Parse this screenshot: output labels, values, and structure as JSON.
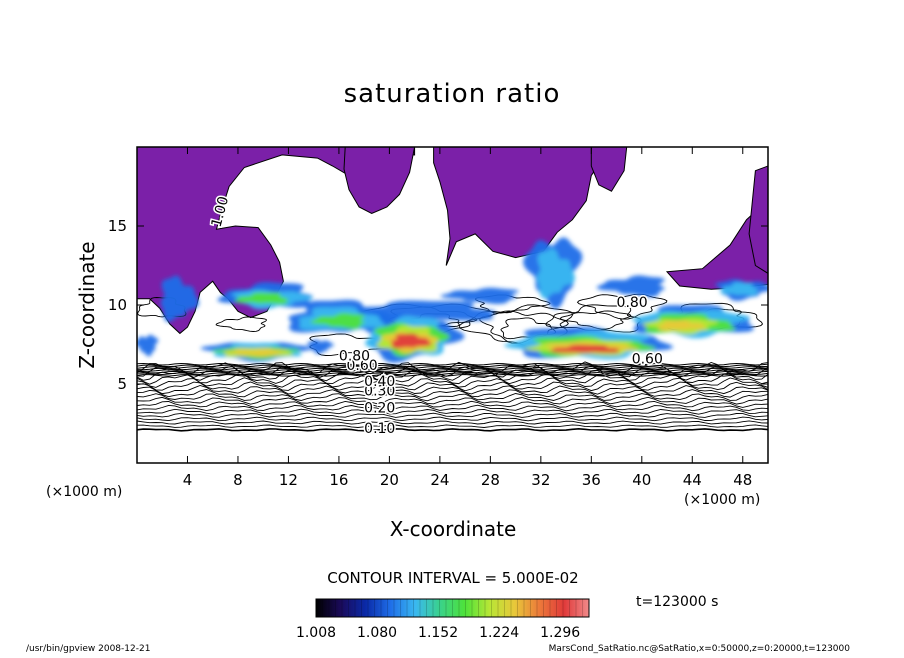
{
  "chart_data": {
    "type": "heatmap",
    "title": "saturation ratio",
    "xlabel": "X-coordinate",
    "ylabel": "Z-coordinate",
    "x_unit_label": "(×1000 m)",
    "z_unit_label": "(×1000 m)",
    "xlim": [
      0,
      50
    ],
    "ylim": [
      0,
      20
    ],
    "x_ticks": [
      4,
      8,
      12,
      16,
      20,
      24,
      28,
      32,
      36,
      40,
      44,
      48
    ],
    "y_ticks": [
      5,
      10,
      15
    ],
    "x_tick_labels": [
      "4",
      "8",
      "12",
      "16",
      "20",
      "24",
      "28",
      "32",
      "36",
      "40",
      "44",
      "48"
    ],
    "y_tick_labels": [
      "5",
      "10",
      "15"
    ],
    "contour_interval_text": "CONTOUR INTERVAL = 5.000E-02",
    "contour_labels": [
      "0.10",
      "0.20",
      "0.30",
      "0.40",
      "0.60",
      "0.80",
      "1.00",
      "0.80",
      "0.60"
    ],
    "contour_label_values": [
      0.1,
      0.2,
      0.3,
      0.4,
      0.6,
      0.8,
      1.0,
      0.8,
      0.6
    ],
    "contour_levels_lower": [
      0.1,
      0.15,
      0.2,
      0.25,
      0.3,
      0.35,
      0.4,
      0.45,
      0.5,
      0.55,
      0.6,
      0.65,
      0.7,
      0.75,
      0.8,
      0.85,
      0.9,
      0.95
    ],
    "colorbar": {
      "min": 1.008,
      "max": 1.33,
      "tick_labels": [
        "1.008",
        "1.080",
        "1.152",
        "1.224",
        "1.296"
      ],
      "tick_values": [
        1.008,
        1.08,
        1.152,
        1.224,
        1.296
      ],
      "colors": [
        "#000000",
        "#1a0a5a",
        "#0a2aa8",
        "#1f6ee8",
        "#3ab8f0",
        "#3ad28a",
        "#4ee23a",
        "#b8e636",
        "#e8c83a",
        "#ec7a3a",
        "#e03a3a",
        "#f08a8a"
      ]
    },
    "ice_region_color": "#7b20a8",
    "time_label": "t=123000 s"
  },
  "footer": {
    "left": "/usr/bin/gpview   2008-12-21",
    "right": "MarsCond_SatRatio.nc@SatRatio,x=0:50000,z=0:20000,t=123000"
  }
}
